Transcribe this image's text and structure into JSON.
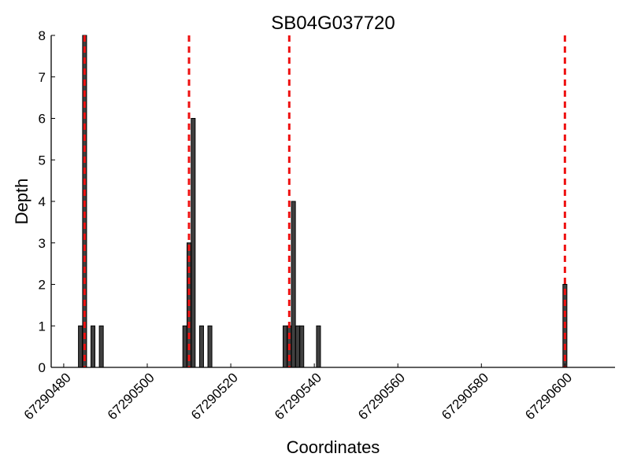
{
  "chart_data": {
    "type": "bar",
    "title": "SB04G037720",
    "xlabel": "Coordinates",
    "ylabel": "Depth",
    "xlim": [
      67290477,
      67290612
    ],
    "ylim": [
      0,
      8
    ],
    "xticks": [
      67290480,
      67290500,
      67290520,
      67290540,
      67290560,
      67290580,
      67290600
    ],
    "xtick_labels": [
      "67290480",
      "67290500",
      "67290520",
      "67290540",
      "67290560",
      "67290580",
      "67290600"
    ],
    "yticks": [
      0,
      1,
      2,
      3,
      4,
      5,
      6,
      7,
      8
    ],
    "ytick_labels": [
      "0",
      "1",
      "2",
      "3",
      "4",
      "5",
      "6",
      "7",
      "8"
    ],
    "grid": false,
    "colors": {
      "bar": "#404040",
      "marker": "#ee1111"
    },
    "bars": [
      {
        "x": 67290484,
        "value": 1
      },
      {
        "x": 67290485,
        "value": 8
      },
      {
        "x": 67290487,
        "value": 1
      },
      {
        "x": 67290489,
        "value": 1
      },
      {
        "x": 67290509,
        "value": 1
      },
      {
        "x": 67290510,
        "value": 3
      },
      {
        "x": 67290511,
        "value": 6
      },
      {
        "x": 67290513,
        "value": 1
      },
      {
        "x": 67290515,
        "value": 1
      },
      {
        "x": 67290533,
        "value": 1
      },
      {
        "x": 67290534,
        "value": 1
      },
      {
        "x": 67290535,
        "value": 4
      },
      {
        "x": 67290536,
        "value": 1
      },
      {
        "x": 67290537,
        "value": 1
      },
      {
        "x": 67290541,
        "value": 1
      },
      {
        "x": 67290600,
        "value": 2
      }
    ],
    "markers": [
      67290485,
      67290510,
      67290534,
      67290600
    ]
  }
}
